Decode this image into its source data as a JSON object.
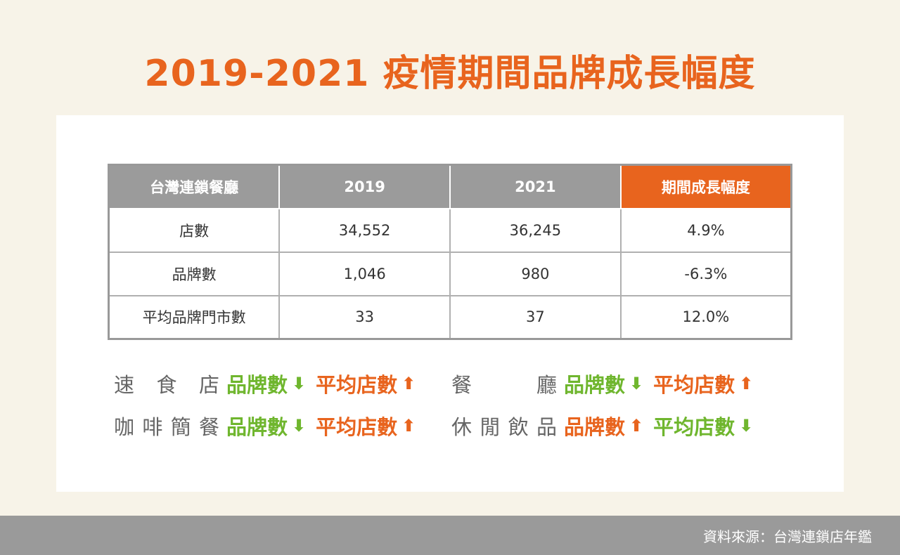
{
  "title": "2019-2021 疫情期間品牌成長幅度",
  "table": {
    "headers": [
      "台灣連鎖餐廳",
      "2019",
      "2021",
      "期間成長幅度"
    ],
    "rows": [
      [
        "店數",
        "34,552",
        "36,245",
        "4.9%"
      ],
      [
        "品牌數",
        "1,046",
        "980",
        "-6.3%"
      ],
      [
        "平均品牌門市數",
        "33",
        "37",
        "12.0%"
      ]
    ]
  },
  "legend": [
    {
      "category_chars": [
        "速",
        "食",
        "店"
      ],
      "brand_label": "品牌數",
      "brand_arrow": "⬇",
      "avg_label": "平均店數",
      "avg_arrow": "⬆"
    },
    {
      "category_chars": [
        "餐",
        "廳"
      ],
      "brand_label": "品牌數",
      "brand_arrow": "⬇",
      "avg_label": "平均店數",
      "avg_arrow": "⬆"
    },
    {
      "category_chars": [
        "咖",
        "啡",
        "簡",
        "餐"
      ],
      "brand_label": "品牌數",
      "brand_arrow": "⬇",
      "avg_label": "平均店數",
      "avg_arrow": "⬆"
    },
    {
      "category_chars": [
        "休",
        "閒",
        "飲",
        "品"
      ],
      "brand_label": "品牌數",
      "brand_arrow": "⬆",
      "avg_label": "平均店數",
      "avg_arrow": "⬇"
    }
  ],
  "colors": {
    "accent": "#e8641e",
    "green": "#6fb62e",
    "header_gray": "#9b9b9b"
  },
  "source": "資料來源：台灣連鎖店年鑑"
}
